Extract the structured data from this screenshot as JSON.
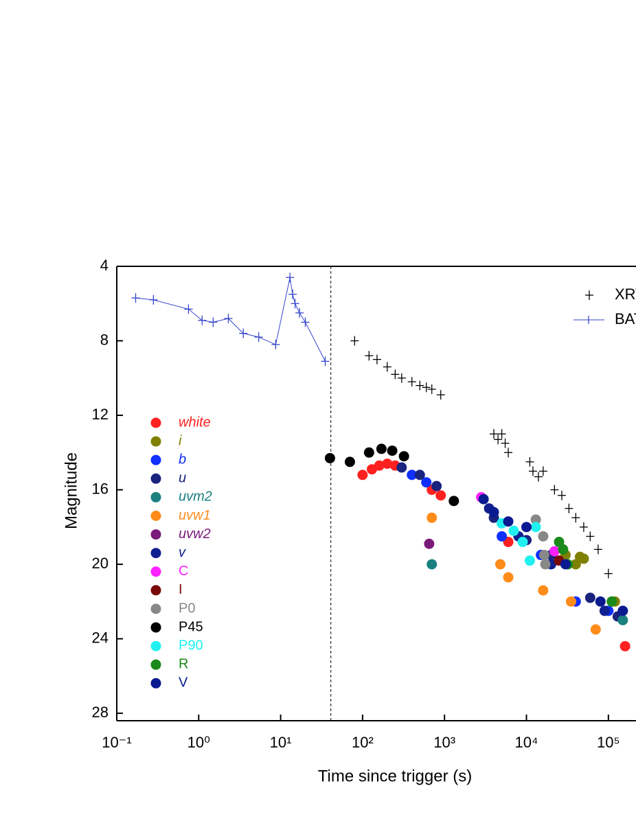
{
  "chart_data": {
    "type": "scatter",
    "xlabel": "Time since trigger (s)",
    "ylabel": "Magnitude",
    "xscale": "log",
    "xlim": [
      0.1,
      1000000
    ],
    "xticks": [
      {
        "value": 0.1,
        "label": "10⁻¹"
      },
      {
        "value": 1,
        "label": "10⁰"
      },
      {
        "value": 10,
        "label": "10¹"
      },
      {
        "value": 100,
        "label": "10²"
      },
      {
        "value": 1000,
        "label": "10³"
      },
      {
        "value": 10000,
        "label": "10⁴"
      },
      {
        "value": 100000,
        "label": "10⁵"
      }
    ],
    "ylim": [
      4,
      28.4
    ],
    "yticks": [
      4,
      8,
      12,
      16,
      20,
      24,
      28
    ],
    "invert_y": true,
    "vline": 41,
    "line_series": [
      {
        "name": "XRT",
        "color": "#000000",
        "marker": "plus",
        "x": [
          80,
          120,
          150,
          200,
          250,
          300,
          400,
          500,
          600,
          700,
          900,
          4000,
          4500,
          5000,
          5500,
          6000,
          11000,
          12000,
          14000,
          16000,
          22000,
          27000,
          33000,
          40000,
          50000,
          60000,
          75000,
          100000
        ],
        "values": [
          8.0,
          8.8,
          9.0,
          9.4,
          9.8,
          10.0,
          10.2,
          10.4,
          10.5,
          10.6,
          10.9,
          13.0,
          13.3,
          13.0,
          13.5,
          14.0,
          14.5,
          15.0,
          15.3,
          15.0,
          16.0,
          16.3,
          17.0,
          17.5,
          18.0,
          18.5,
          19.2,
          20.5
        ]
      },
      {
        "name": "BAT",
        "color": "#3344cc",
        "marker": "line",
        "x": [
          0.17,
          0.28,
          0.75,
          1.1,
          1.5,
          2.3,
          3.5,
          5.4,
          8.7,
          13,
          14,
          15,
          17,
          20,
          35
        ],
        "values": [
          5.7,
          5.8,
          6.3,
          6.9,
          7.0,
          6.8,
          7.6,
          7.8,
          8.2,
          4.6,
          5.5,
          6.0,
          6.5,
          7.0,
          9.1
        ]
      }
    ],
    "legend_corner": "upper right",
    "series": [
      {
        "name": "white",
        "color": "#ff2020",
        "italic": true,
        "x": [
          100,
          130,
          160,
          200,
          250,
          700,
          900,
          6000,
          160000
        ],
        "values": [
          15.2,
          14.9,
          14.7,
          14.6,
          14.7,
          16.0,
          16.3,
          18.8,
          24.4
        ]
      },
      {
        "name": "i",
        "color": "#808000",
        "italic": true,
        "x": [
          30000,
          40000,
          45000,
          50000,
          120000
        ],
        "values": [
          19.5,
          20.0,
          19.6,
          19.7,
          22.0
        ]
      },
      {
        "name": "b",
        "color": "#1030ff",
        "italic": true,
        "x": [
          400,
          600,
          5000,
          15000,
          40000,
          100000
        ],
        "values": [
          15.2,
          15.6,
          18.5,
          19.5,
          22.0,
          22.5
        ]
      },
      {
        "name": "u",
        "color": "#1a237e",
        "italic": true,
        "x": [
          300,
          500,
          800,
          4000,
          10000,
          20000,
          60000,
          130000
        ],
        "values": [
          14.8,
          15.2,
          15.8,
          17.5,
          18.7,
          19.5,
          21.8,
          22.8
        ]
      },
      {
        "name": "uvm2",
        "color": "#1a8080",
        "italic": true,
        "x": [
          700,
          150000
        ],
        "values": [
          20.0,
          23.0
        ]
      },
      {
        "name": "uvw1",
        "color": "#ff8c1a",
        "italic": true,
        "x": [
          700,
          4800,
          6000,
          16000,
          35000,
          70000
        ],
        "values": [
          17.5,
          20.0,
          20.7,
          21.4,
          22.0,
          23.5
        ]
      },
      {
        "name": "uvw2",
        "color": "#7b1a7b",
        "italic": true,
        "x": [
          650
        ],
        "values": [
          18.9
        ]
      },
      {
        "name": "v",
        "color": "#102090",
        "italic": true,
        "x": [
          3500,
          8000,
          20000,
          90000
        ],
        "values": [
          17.0,
          18.5,
          20.0,
          22.5
        ]
      },
      {
        "name": "C",
        "color": "#ff20ff",
        "italic": false,
        "x": [
          2800,
          22000
        ],
        "values": [
          16.4,
          19.3
        ]
      },
      {
        "name": "I",
        "color": "#7a0a0a",
        "italic": false,
        "x": [
          25000
        ],
        "values": [
          19.8
        ]
      },
      {
        "name": "P0",
        "color": "#888888",
        "italic": false,
        "x": [
          13000,
          16000,
          16500,
          17000
        ],
        "values": [
          17.6,
          18.5,
          19.5,
          20.0
        ]
      },
      {
        "name": "P45",
        "color": "#000000",
        "italic": false,
        "x": [
          40,
          70,
          120,
          170,
          230,
          320,
          1300
        ],
        "values": [
          14.3,
          14.5,
          14.0,
          13.8,
          13.9,
          14.2,
          16.6
        ]
      },
      {
        "name": "P90",
        "color": "#20f0f0",
        "italic": false,
        "x": [
          5000,
          7000,
          9000,
          11000,
          13000
        ],
        "values": [
          17.8,
          18.2,
          18.8,
          19.8,
          18.0
        ]
      },
      {
        "name": "R",
        "color": "#1a8a1a",
        "italic": false,
        "x": [
          25000,
          28000,
          32000,
          110000
        ],
        "values": [
          18.8,
          19.2,
          20.0,
          22.0
        ]
      },
      {
        "name": "V",
        "color": "#0a1a90",
        "italic": false,
        "x": [
          3000,
          4000,
          6000,
          10000,
          30000,
          80000,
          150000
        ],
        "values": [
          16.5,
          17.2,
          17.7,
          18.0,
          20.0,
          22.0,
          22.5
        ]
      }
    ]
  }
}
